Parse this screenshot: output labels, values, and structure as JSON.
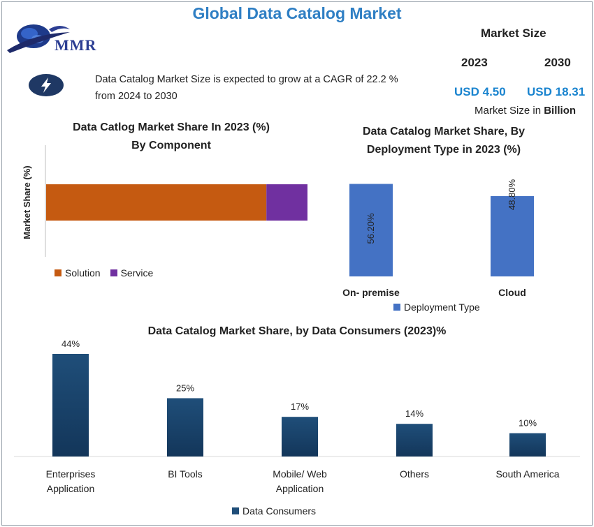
{
  "title": "Global Data Catalog Market",
  "logo_text": "MMR",
  "cagr_text": "Data Catalog Market Size is expected to grow at a CAGR of 22.2 % from 2024 to 2030",
  "market_size": {
    "title": "Market Size",
    "year_a": "2023",
    "year_b": "2030",
    "value_a": "USD 4.50",
    "value_b": "USD 18.31",
    "unit_prefix": "Market Size in ",
    "unit_bold": "Billion"
  },
  "colors": {
    "title": "#2f7fc4",
    "value": "#1a84cf",
    "solution": "#c55a11",
    "service": "#7030a0",
    "deployment": "#4472c4",
    "consumers": "#1f4e79"
  },
  "chart_data": [
    {
      "type": "bar",
      "orientation": "horizontal-stacked",
      "title_line1": "Data Catlog Market Share In 2023 (%)",
      "title_line2": "By Component",
      "ylabel": "Market Share (%)",
      "series": [
        {
          "name": "Solution",
          "values": [
            80
          ]
        },
        {
          "name": "Service",
          "values": [
            16
          ]
        }
      ],
      "xlim": [
        0,
        100
      ],
      "legend": "bottom-left"
    },
    {
      "type": "bar",
      "title_line1": "Data Catalog Market Share, By",
      "title_line2": "Deployment Type in 2023 (%)",
      "categories": [
        "On- premise",
        "Cloud"
      ],
      "values": [
        56.2,
        48.8
      ],
      "labels": [
        "56.20%",
        "48.80%"
      ],
      "series_name": "Deployment Type",
      "ylim": [
        0,
        60
      ],
      "legend": "bottom"
    },
    {
      "type": "bar",
      "title": "Data Catalog Market Share, by Data Consumers (2023)%",
      "categories": [
        [
          "Enterprises",
          "Application"
        ],
        [
          "BI Tools"
        ],
        [
          "Mobile/ Web",
          "Application"
        ],
        [
          "Others"
        ],
        [
          "South America"
        ]
      ],
      "values": [
        44,
        25,
        17,
        14,
        10
      ],
      "labels": [
        "44%",
        "25%",
        "17%",
        "14%",
        "10%"
      ],
      "series_name": "Data Consumers",
      "ylim": [
        0,
        48
      ],
      "legend": "bottom"
    }
  ]
}
